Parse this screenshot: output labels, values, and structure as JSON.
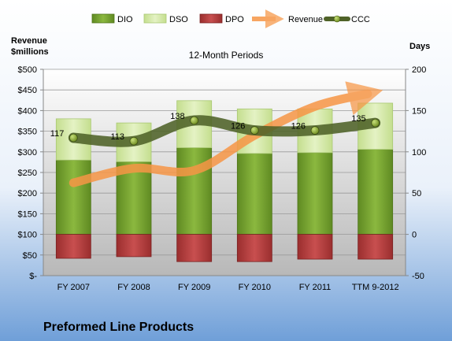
{
  "chart_data": {
    "type": "bar",
    "title": "12-Month Periods",
    "subtitle": "Preformed Line Products",
    "left_axis_label": [
      "Revenue",
      "$millions"
    ],
    "right_axis_label": "Days",
    "categories": [
      "FY 2007",
      "FY 2008",
      "FY 2009",
      "FY 2010",
      "FY 2011",
      "TTM 9-2012"
    ],
    "left_axis": {
      "min": 0,
      "max": 500,
      "ticks": [
        0,
        50,
        100,
        150,
        200,
        250,
        300,
        350,
        400,
        450,
        500
      ],
      "tick_labels": [
        "$-",
        "$50",
        "$100",
        "$150",
        "$200",
        "$250",
        "$300",
        "$350",
        "$400",
        "$450",
        "$500"
      ]
    },
    "right_axis": {
      "min": -50,
      "max": 200,
      "ticks": [
        -50,
        0,
        50,
        100,
        150,
        200
      ],
      "tick_labels": [
        "-50",
        "0",
        "50",
        "100",
        "150",
        "200"
      ]
    },
    "stacked_days_series": [
      {
        "name": "DIO",
        "color": "#76a02f",
        "values": [
          90,
          88,
          105,
          98,
          99,
          103
        ]
      },
      {
        "name": "DSO",
        "color": "#d2e8a6",
        "values": [
          50,
          47,
          57,
          54,
          53,
          56
        ]
      },
      {
        "name": "DPO",
        "color": "#b13b3b",
        "values": [
          -29,
          -27,
          -33,
          -33,
          -30,
          -30
        ]
      }
    ],
    "line_series": [
      {
        "name": "Revenue",
        "axis": "left",
        "color": "#f79646",
        "values": [
          225,
          260,
          255,
          340,
          410,
          445
        ]
      },
      {
        "name": "CCC",
        "axis": "right",
        "color": "#4f6228",
        "values": [
          117,
          113,
          138,
          126,
          126,
          135
        ],
        "labels": [
          "117",
          "113",
          "138",
          "126",
          "126",
          "135"
        ]
      }
    ],
    "legend_position": "top",
    "grid": true
  }
}
